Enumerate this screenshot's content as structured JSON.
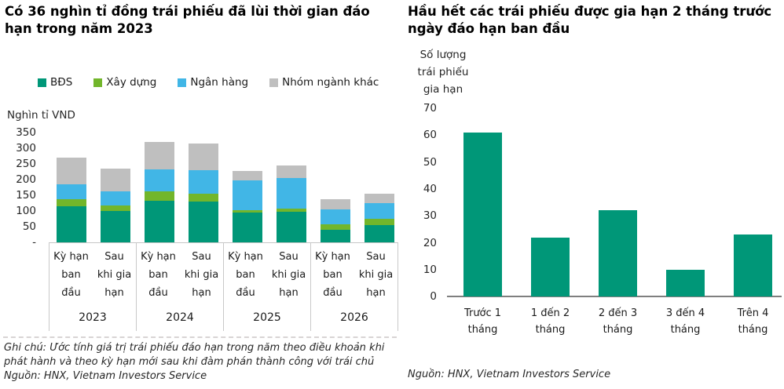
{
  "page": {
    "background": "#ffffff"
  },
  "left_chart": {
    "title": "Có 36 nghìn tỉ đồng trái phiếu đã lùi thời gian đáo hạn trong năm 2023",
    "unit_label": "Nghìn tỉ VND",
    "note": "Ghi chú: Ước tính giá trị trái phiếu đáo hạn trong năm theo điều khoản khi phát hành và theo kỳ hạn mới sau khi đàm phán thành công với trái chủ",
    "source": "Nguồn: HNX, Vietnam Investors Service"
  },
  "right_chart": {
    "title": "Hầu hết các trái phiếu được gia hạn 2 tháng trước ngày đáo hạn ban đầu",
    "ylabel_lines": [
      "Số lượng",
      "trái phiếu",
      "gia hạn"
    ],
    "source": "Nguồn: HNX, Vietnam Investors Service"
  },
  "colors": {
    "bds_green": "#009778",
    "construction_green": "#72B62B",
    "bank_blue": "#41B6E6",
    "other_gray": "#BFBFBF",
    "axis_gray": "#7F7F7F",
    "grid_light_gray": "#C9C9C9"
  },
  "chart_data": [
    {
      "type": "bar",
      "variant": "stacked",
      "title": "Có 36 nghìn tỉ đồng trái phiếu đã lùi thời gian đáo hạn trong năm 2023",
      "ylabel": "Nghìn tỉ VND",
      "ylim": [
        0,
        350
      ],
      "ytick_step": 50,
      "ytick_labels": [
        "350",
        "300",
        "250",
        "200",
        "150",
        "100",
        "50",
        "-"
      ],
      "grid": false,
      "legend_position": "top",
      "groups": [
        "2023",
        "2024",
        "2025",
        "2026"
      ],
      "bars_per_group": 2,
      "bar_label_lines": [
        [
          "Kỳ hạn",
          "ban",
          "đầu"
        ],
        [
          "Sau",
          "khi gia",
          "hạn"
        ]
      ],
      "series": [
        {
          "name": "BĐS",
          "color": "#009778",
          "values": [
            116,
            99,
            133,
            131,
            95,
            97,
            40,
            56
          ]
        },
        {
          "name": "Xây dựng",
          "color": "#72B62B",
          "values": [
            22,
            19,
            29,
            25,
            7,
            11,
            18,
            20
          ]
        },
        {
          "name": "Ngân hàng",
          "color": "#41B6E6",
          "values": [
            46,
            44,
            71,
            74,
            96,
            98,
            48,
            49
          ]
        },
        {
          "name": "Nhóm ngành khác",
          "color": "#BFBFBF",
          "values": [
            85,
            72,
            87,
            85,
            29,
            40,
            31,
            31
          ]
        }
      ]
    },
    {
      "type": "bar",
      "title": "Hầu hết các trái phiếu được gia hạn 2 tháng trước ngày đáo hạn ban đầu",
      "ylabel": "Số lượng trái phiếu gia hạn",
      "ylim": [
        0,
        70
      ],
      "ytick_step": 10,
      "ytick_labels": [
        "70",
        "60",
        "50",
        "40",
        "30",
        "20",
        "10",
        "0"
      ],
      "grid": false,
      "legend_position": "none",
      "categories_lines": [
        [
          "Trước 1",
          "tháng"
        ],
        [
          "1 đến 2",
          "tháng"
        ],
        [
          "2 đến 3",
          "tháng"
        ],
        [
          "3 đến 4",
          "tháng"
        ],
        [
          "Trên 4",
          "tháng"
        ]
      ],
      "categories": [
        "Trước 1 tháng",
        "1 đến 2 tháng",
        "2 đến 3 tháng",
        "3 đến 4 tháng",
        "Trên 4 tháng"
      ],
      "values": [
        61,
        22,
        32,
        10,
        23
      ],
      "bar_color": "#009778"
    }
  ]
}
